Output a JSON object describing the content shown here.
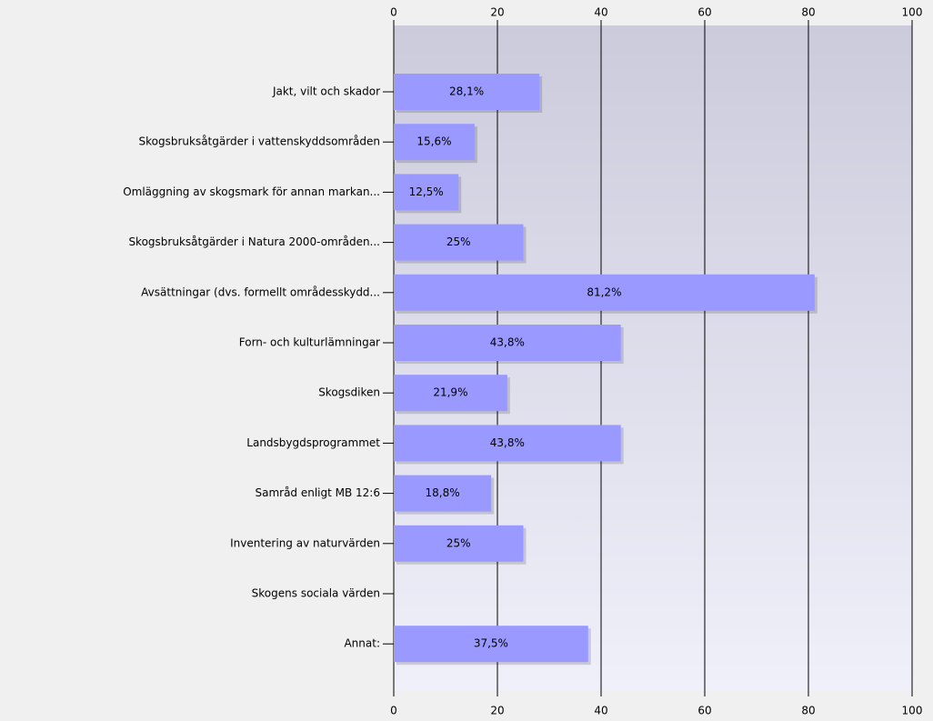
{
  "chart_data": {
    "type": "bar",
    "orientation": "horizontal",
    "categories": [
      "Jakt, vilt och skador",
      "Skogsbruksåtgärder i vattenskyddsområden",
      "Omläggning av skogsmark för annan markan...",
      "Skogsbruksåtgärder i Natura 2000-områden...",
      "Avsättningar (dvs. formellt områdesskydd...",
      "Forn- och kulturlämningar",
      "Skogsdiken",
      "Landsbygdsprogrammet",
      "Samråd enligt MB 12:6",
      "Inventering av naturvärden",
      "Skogens sociala värden",
      "Annat:"
    ],
    "values": [
      28.1,
      15.6,
      12.5,
      25,
      81.2,
      43.8,
      21.9,
      43.8,
      18.8,
      25,
      0,
      37.5
    ],
    "value_labels": [
      "28,1%",
      "15,6%",
      "12,5%",
      "25%",
      "81,2%",
      "43,8%",
      "21,9%",
      "43,8%",
      "18,8%",
      "25%",
      null,
      "37,5%"
    ],
    "color": "#9999ff",
    "xlim": [
      0,
      100
    ],
    "xticks": [
      0,
      20,
      40,
      60,
      80,
      100
    ],
    "grid": true
  }
}
